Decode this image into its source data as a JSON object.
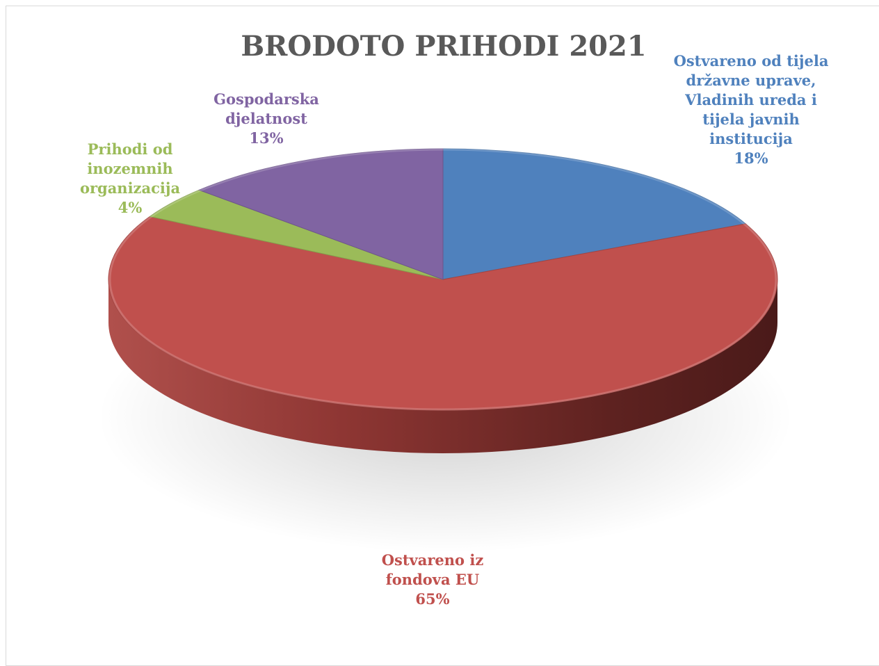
{
  "chart_data": {
    "type": "pie",
    "three_d": true,
    "title": "BRODOTO PRIHODI 2021",
    "slices": [
      {
        "label_lines": [
          "Ostvareno od tijela",
          "državne uprave,",
          "Vladinih ureda i",
          "tijela javnih",
          "institucija"
        ],
        "percent_text": "18%",
        "value": 18,
        "color": "#4f81bd"
      },
      {
        "label_lines": [
          "Ostvareno iz",
          "fondova EU"
        ],
        "percent_text": "65%",
        "value": 65,
        "color": "#c0504d"
      },
      {
        "label_lines": [
          "Prihodi od",
          "inozemnih",
          "organizacija"
        ],
        "percent_text": "4%",
        "value": 4,
        "color": "#9bbb59"
      },
      {
        "label_lines": [
          "Gospodarska",
          "djelatnost"
        ],
        "percent_text": "13%",
        "value": 13,
        "color": "#8064a2"
      }
    ],
    "legend": "none"
  }
}
